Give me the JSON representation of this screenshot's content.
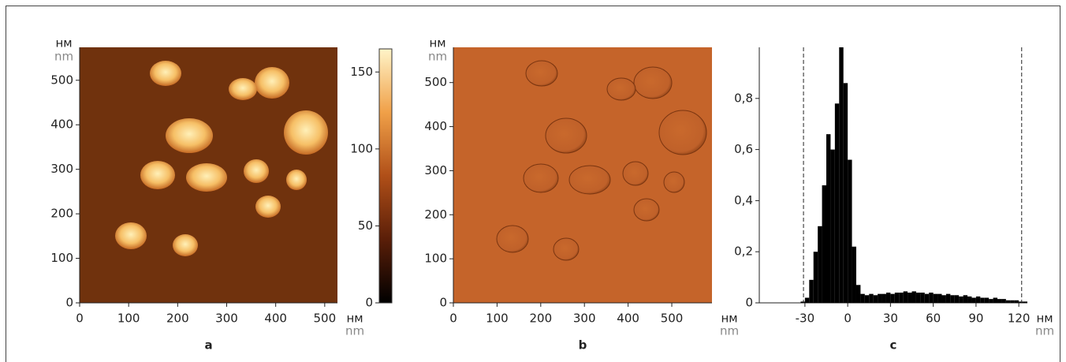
{
  "chart_data": [
    {
      "type": "heatmap",
      "panel_label": "a",
      "x_unit": [
        "нм",
        "nm"
      ],
      "y_unit": [
        "нм",
        "nm"
      ],
      "xlim": [
        0,
        526
      ],
      "ylim": [
        0,
        574
      ],
      "xticks": [
        0,
        100,
        200,
        300,
        400,
        500
      ],
      "yticks": [
        0,
        100,
        200,
        300,
        400,
        500
      ],
      "zlim": [
        0,
        165
      ],
      "zticks": [
        0,
        50,
        100,
        150
      ]
    },
    {
      "type": "image",
      "panel_label": "b",
      "x_unit": [
        "нм",
        "nm"
      ],
      "y_unit": [
        "нм",
        "nm"
      ],
      "xlim": [
        0,
        592
      ],
      "ylim": [
        0,
        580
      ],
      "xticks": [
        0,
        100,
        200,
        300,
        400,
        500
      ],
      "yticks": [
        0,
        100,
        200,
        300,
        400,
        500
      ]
    },
    {
      "type": "histogram",
      "panel_label": "c",
      "x_unit": [
        "нм",
        "nm"
      ],
      "xlim": [
        -62,
        126
      ],
      "ylim": [
        0,
        1.0
      ],
      "xticks": [
        -30,
        0,
        30,
        60,
        90,
        120
      ],
      "yticks": [
        0,
        {
          "value": 0.2,
          "label": "0,2"
        },
        {
          "value": 0.4,
          "label": "0,4"
        },
        {
          "value": 0.6,
          "label": "0,6"
        },
        {
          "value": 0.8,
          "label": "0,8"
        }
      ],
      "color": "#000000",
      "vlines": [
        -31,
        122
      ],
      "bins": [
        -33,
        -30,
        -27,
        -24,
        -21,
        -18,
        -15,
        -12,
        -9,
        -6,
        -3,
        0,
        3,
        6,
        9,
        12,
        15,
        18,
        21,
        24,
        27,
        30,
        33,
        36,
        39,
        42,
        45,
        48,
        51,
        54,
        57,
        60,
        63,
        66,
        69,
        72,
        75,
        78,
        81,
        84,
        87,
        90,
        93,
        96,
        99,
        102,
        105,
        108,
        111,
        114,
        117,
        120,
        123,
        126
      ],
      "values": [
        0.005,
        0.02,
        0.09,
        0.2,
        0.3,
        0.46,
        0.66,
        0.6,
        0.78,
        1.0,
        0.86,
        0.56,
        0.22,
        0.07,
        0.035,
        0.03,
        0.035,
        0.03,
        0.035,
        0.035,
        0.04,
        0.035,
        0.04,
        0.04,
        0.045,
        0.04,
        0.045,
        0.04,
        0.04,
        0.035,
        0.04,
        0.035,
        0.035,
        0.03,
        0.035,
        0.03,
        0.03,
        0.025,
        0.03,
        0.025,
        0.02,
        0.025,
        0.02,
        0.02,
        0.015,
        0.02,
        0.015,
        0.015,
        0.01,
        0.01,
        0.01,
        0.005,
        0.005
      ]
    }
  ]
}
